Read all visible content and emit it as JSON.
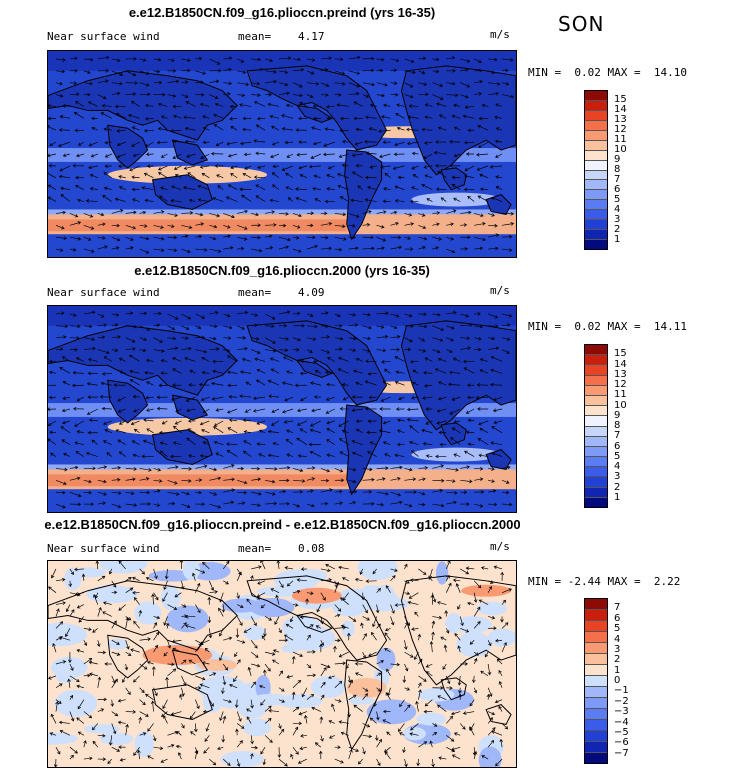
{
  "season": "SON",
  "colors": {
    "abs_scale": [
      "#030a7d",
      "#1025b0",
      "#2040d6",
      "#3a5ce8",
      "#5a7cf2",
      "#7c9af6",
      "#a0b8f9",
      "#c6d6fb",
      "#eef3fe",
      "#fde2cd",
      "#fbc09c",
      "#f99a72",
      "#f4704a",
      "#e84424",
      "#c81f0e",
      "#8e0a05"
    ],
    "diff_scale": [
      "#030a7d",
      "#1025b0",
      "#2040d6",
      "#3a5ce8",
      "#5a7cf2",
      "#7c9af6",
      "#a0b8f9",
      "#cfe0fc",
      "#fde2cd",
      "#fbc09c",
      "#f99a72",
      "#f4704a",
      "#e84424",
      "#c81f0e",
      "#8e0a05"
    ]
  },
  "chart_data": [
    {
      "type": "heatmap",
      "title": "e.e12.B1850CN.f09_g16.plioccn.preind (yrs 16-35)",
      "left_label": "Near surface wind",
      "mean_label": "mean=",
      "mean_value": "4.17",
      "units": "m/s",
      "min_label": "MIN =",
      "min_value": "0.02",
      "max_label": "MAX =",
      "max_value": "14.10",
      "colorbar_labels": [
        "15",
        "14",
        "13",
        "12",
        "11",
        "10",
        "9",
        "8",
        "7",
        "6",
        "5",
        "4",
        "3",
        "2",
        "1"
      ]
    },
    {
      "type": "heatmap",
      "title": "e.e12.B1850CN.f09_g16.plioccn.2000 (yrs 16-35)",
      "left_label": "Near surface wind",
      "mean_label": "mean=",
      "mean_value": "4.09",
      "units": "m/s",
      "min_label": "MIN =",
      "min_value": "0.02",
      "max_label": "MAX =",
      "max_value": "14.11",
      "colorbar_labels": [
        "15",
        "14",
        "13",
        "12",
        "11",
        "10",
        "9",
        "8",
        "7",
        "6",
        "5",
        "4",
        "3",
        "2",
        "1"
      ]
    },
    {
      "type": "heatmap",
      "title": "e.e12.B1850CN.f09_g16.plioccn.preind - e.e12.B1850CN.f09_g16.plioccn.2000",
      "left_label": "Near surface wind",
      "mean_label": "mean=",
      "mean_value": "0.08",
      "units": "m/s",
      "min_label": "MIN =",
      "min_value": "-2.44",
      "max_label": "MAX =",
      "max_value": "2.22",
      "colorbar_labels": [
        "7",
        "6",
        "5",
        "4",
        "3",
        "2",
        "1",
        "0",
        "−1",
        "−2",
        "−3",
        "−4",
        "−5",
        "−6",
        "−7"
      ]
    }
  ]
}
